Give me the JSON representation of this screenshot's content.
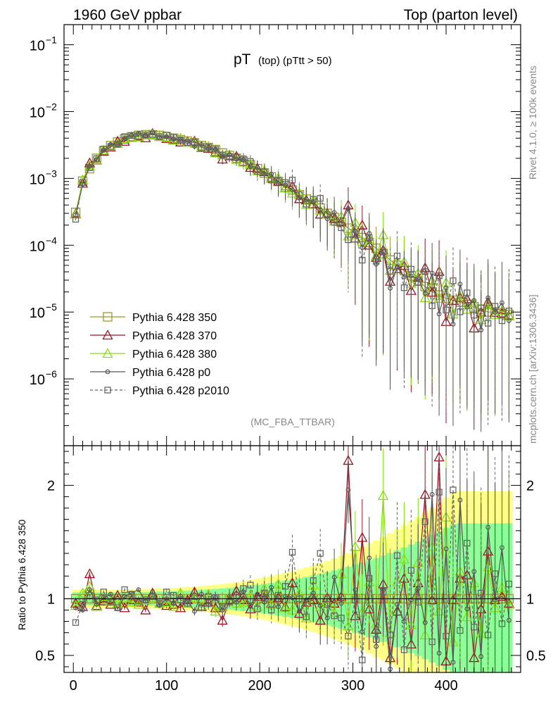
{
  "header": {
    "left": "1960 GeV ppbar",
    "right": "Top (parton level)"
  },
  "side": {
    "rivet": "Rivet 4.1.0, ≥ 100k events",
    "mcplots": "mcplots.cern.ch [arXiv:1306.3436]"
  },
  "colors": {
    "s350": "#9a9a2a",
    "s370": "#a01020",
    "s380": "#88dd11",
    "p0": "#555555",
    "p2010": "#666666",
    "band_yellow": "#ffff88",
    "band_green": "#88ff99"
  },
  "chart_data": {
    "type": "line",
    "title_main": "pT",
    "title_sub": "(top)  (pTtt > 50)",
    "analysis": "(MC_FBA_TTBAR)",
    "xlim": [
      -10,
      480
    ],
    "upper": {
      "yscale": "log",
      "ylim": [
        1e-07,
        0.2
      ],
      "yticks": [
        {
          "value": 0.1,
          "mant": "10",
          "exp": "−1"
        },
        {
          "value": 0.01,
          "mant": "10",
          "exp": "−2"
        },
        {
          "value": 0.001,
          "mant": "10",
          "exp": "−3"
        },
        {
          "value": 0.0001,
          "mant": "10",
          "exp": "−4"
        },
        {
          "value": 1e-05,
          "mant": "10",
          "exp": "−5"
        },
        {
          "value": 1e-06,
          "mant": "10",
          "exp": "−6"
        }
      ]
    },
    "lower": {
      "ylabel": "Ratio to Pythia 6.428 350",
      "ylim": [
        0.35,
        2.35
      ],
      "yticks": [
        {
          "value": 0.5,
          "label": "0.5"
        },
        {
          "value": 1,
          "label": "1"
        },
        {
          "value": 2,
          "label": "2"
        }
      ]
    },
    "xticks": [
      {
        "value": 0,
        "label": "0"
      },
      {
        "value": 100,
        "label": "100"
      },
      {
        "value": 200,
        "label": "200"
      },
      {
        "value": 300,
        "label": "300"
      },
      {
        "value": 400,
        "label": "400"
      }
    ],
    "x": [
      2.5,
      10,
      17.5,
      25,
      32.5,
      40,
      47.5,
      55,
      62.5,
      70,
      77.5,
      85,
      92.5,
      100,
      107.5,
      115,
      122.5,
      130,
      137.5,
      145,
      152.5,
      160,
      167.5,
      175,
      182.5,
      190,
      197.5,
      205,
      212.5,
      220,
      227.5,
      235,
      242.5,
      250,
      257.5,
      265,
      272.5,
      280,
      287.5,
      295,
      302.5,
      310,
      317.5,
      325,
      332.5,
      340,
      347.5,
      355,
      362.5,
      370,
      377.5,
      385,
      392.5,
      400,
      407.5,
      415,
      422.5,
      430,
      437.5,
      445,
      452.5,
      460,
      467.5
    ],
    "reference": [
      0.00031,
      0.00091,
      0.0014,
      0.002,
      0.0026,
      0.0031,
      0.0035,
      0.0039,
      0.0042,
      0.0044,
      0.0045,
      0.0045,
      0.0044,
      0.0042,
      0.004,
      0.0038,
      0.0036,
      0.0034,
      0.0031,
      0.0029,
      0.0027,
      0.0024,
      0.0022,
      0.002,
      0.0018,
      0.0016,
      0.0014,
      0.0012,
      0.00105,
      0.0009,
      0.00078,
      0.00067,
      0.00057,
      0.00049,
      0.00042,
      0.00036,
      0.0003,
      0.00026,
      0.00022,
      0.00018,
      0.00015,
      0.00013,
      0.00011,
      9e-05,
      7.5e-05,
      6e-05,
      5e-05,
      4.2e-05,
      3.5e-05,
      2.9e-05,
      2.4e-05,
      2e-05,
      1.8e-05,
      1.6e-05,
      1.5e-05,
      1.4e-05,
      1.3e-05,
      1.2e-05,
      1.1e-05,
      1e-05,
      1e-05,
      9.5e-06,
      9.2e-06
    ],
    "series": [
      {
        "name": "Pythia 6.428 350",
        "key": "s350",
        "marker": "square",
        "dashed": false,
        "ratio": [
          1,
          1,
          1,
          1,
          1,
          1,
          1,
          1,
          1,
          1,
          1,
          1,
          1,
          1,
          1,
          1,
          1,
          1,
          1,
          1,
          1,
          1,
          1,
          1,
          1,
          1,
          1,
          1,
          1,
          1,
          1,
          1,
          1,
          1,
          1,
          1,
          1,
          1,
          1,
          1,
          1,
          1,
          1,
          1,
          1,
          1,
          1,
          1,
          1,
          1,
          1,
          1,
          1,
          1,
          1,
          1,
          1,
          1,
          1,
          1,
          1,
          1,
          1
        ]
      },
      {
        "name": "Pythia 6.428 370",
        "key": "s370",
        "marker": "triangle",
        "dashed": false,
        "ratio": [
          0.96,
          0.93,
          1.22,
          0.94,
          0.98,
          0.95,
          1.03,
          0.92,
          0.99,
          0.97,
          0.9,
          1.05,
          0.96,
          0.94,
          0.95,
          0.92,
          0.99,
          1.06,
          0.93,
          0.97,
          0.92,
          0.81,
          0.99,
          1.07,
          0.99,
          0.91,
          1.02,
          1.05,
          0.96,
          1.01,
          0.93,
          1.14,
          0.87,
          0.97,
          0.99,
          0.81,
          1.01,
          0.96,
          1.02,
          2.22,
          0.85,
          1.54,
          0.91,
          0.73,
          1.13,
          0.48,
          0.89,
          1.18,
          0.6,
          1.14,
          1.92,
          0.99,
          2.25,
          0.45,
          0.99,
          1.18,
          1.21,
          0.48,
          0.91,
          1.42,
          0.99,
          1.02,
          0.96
        ]
      },
      {
        "name": "Pythia 6.428 380",
        "key": "s380",
        "marker": "triangle",
        "dashed": false,
        "ratio": [
          0.94,
          1.05,
          1.11,
          0.93,
          1.02,
          0.98,
          0.96,
          1.01,
          0.97,
          0.95,
          0.99,
          1.01,
          0.96,
          0.97,
          0.93,
          1.05,
          0.96,
          1.01,
          0.94,
          1.04,
          0.89,
          0.93,
          1.02,
          0.96,
          0.97,
          1.03,
          0.93,
          1.09,
          0.95,
          1.13,
          0.92,
          0.9,
          1.05,
          0.83,
          1.12,
          0.93,
          0.97,
          0.88,
          1.22,
          0.76,
          1.46,
          0.88,
          1.15,
          0.78,
          1.91,
          0.7,
          1.15,
          1.35,
          0.77,
          1.32,
          0.68,
          1.46,
          0.89,
          1.72,
          0.62,
          1.24,
          0.84,
          1.14,
          0.7,
          1.28,
          0.92,
          1.1,
          0.95
        ]
      },
      {
        "name": "Pythia 6.428 p0",
        "key": "p0",
        "marker": "circle",
        "dashed": false,
        "ratio": [
          0.92,
          0.9,
          1.08,
          0.95,
          1.01,
          1.04,
          0.91,
          1.02,
          1.05,
          1.08,
          0.98,
          1.06,
          0.94,
          1,
          0.96,
          1.02,
          0.98,
          0.89,
          1.04,
          0.95,
          1.01,
          0.9,
          1.02,
          0.97,
          1.06,
          0.94,
          1.04,
          0.97,
          1.1,
          0.93,
          1.02,
          1.01,
          0.89,
          0.99,
          1.05,
          0.94,
          0.83,
          1.19,
          0.96,
          1.96,
          1.08,
          0.71,
          1.36,
          0.58,
          1.08,
          0.38,
          0.95,
          0.8,
          0.99,
          1.09,
          0.79,
          1.92,
          0.52,
          1.44,
          0.44,
          1.87,
          0.91,
          1.24,
          0.49,
          1.63,
          0.99,
          1.45,
          0.81
        ]
      },
      {
        "name": "Pythia 6.428 p2010",
        "key": "p2010",
        "marker": "square",
        "dashed": true,
        "ratio": [
          0.79,
          0.95,
          1.03,
          0.99,
          1.06,
          0.97,
          0.92,
          1.08,
          1.04,
          0.98,
          0.99,
          1.02,
          0.96,
          1.06,
          1.03,
          0.99,
          0.96,
          1.02,
          0.92,
          1.02,
          1.01,
          0.93,
          0.97,
          1.03,
          1.09,
          1.12,
          0.91,
          1.05,
          0.9,
          1.03,
          1.11,
          1.41,
          1,
          0.84,
          1.16,
          1.4,
          0.95,
          0.85,
          0.83,
          0.67,
          0.99,
          0.46,
          1.18,
          0.64,
          1.06,
          0.68,
          1.38,
          0.55,
          1.25,
          0.97,
          1.68,
          0.62,
          1.94,
          0.67,
          1.96,
          0.72,
          1.49,
          0.75,
          1.05,
          0.68,
          1.22,
          0.78,
          1.13
        ]
      }
    ]
  }
}
